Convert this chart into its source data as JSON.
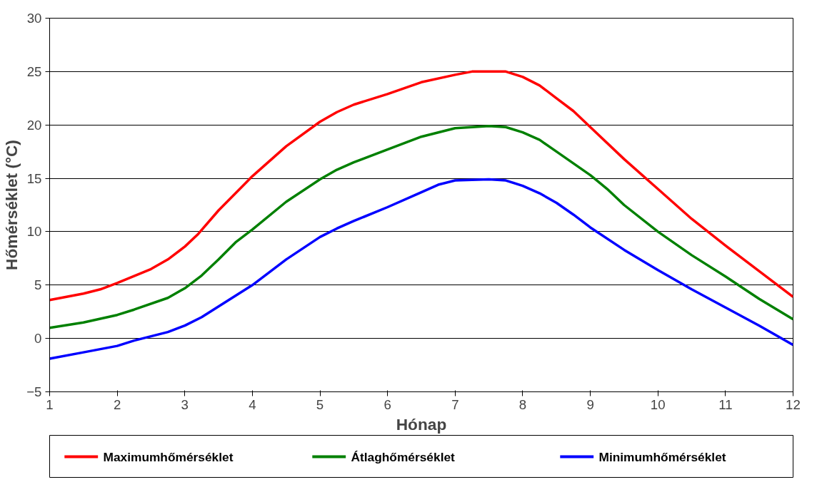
{
  "chart_data": {
    "type": "line",
    "xlabel": "Hónap",
    "ylabel": "Hőmérséklet (°C)",
    "xlim": [
      1,
      12
    ],
    "xticks": [
      1,
      2,
      3,
      4,
      5,
      6,
      7,
      8,
      9,
      10,
      11,
      12
    ],
    "ylim": [
      -5,
      30
    ],
    "yticks": [
      -5,
      0,
      5,
      10,
      15,
      20,
      25,
      30
    ],
    "grid": "y",
    "legend": "bottom",
    "marker": "none",
    "line_style": "solid",
    "series": [
      {
        "name": "Maximumhőmérséklet",
        "color": "#ff0000",
        "x": [
          1,
          1.5,
          1.75,
          2,
          2.5,
          2.75,
          3,
          3.2,
          3.5,
          4,
          4.5,
          5,
          5.25,
          5.5,
          6,
          6.5,
          7,
          7.25,
          7.5,
          7.75,
          8,
          8.25,
          8.5,
          8.75,
          9,
          9.5,
          10,
          10.5,
          11,
          11.5,
          12
        ],
        "values": [
          3.6,
          4.2,
          4.6,
          5.2,
          6.5,
          7.4,
          8.6,
          9.8,
          12,
          15.2,
          18,
          20.3,
          21.2,
          21.9,
          22.9,
          24,
          24.7,
          25,
          25,
          25,
          24.5,
          23.7,
          22.5,
          21.3,
          19.8,
          16.8,
          14,
          11.2,
          8.7,
          6.3,
          3.9
        ]
      },
      {
        "name": "Átlaghőmérséklet",
        "color": "#008000",
        "x": [
          1,
          1.5,
          2,
          2.25,
          2.75,
          3,
          3.25,
          3.5,
          3.75,
          4,
          4.5,
          5,
          5.25,
          5.5,
          6,
          6.5,
          6.75,
          7,
          7.5,
          7.75,
          8,
          8.25,
          8.5,
          9,
          9.25,
          9.5,
          10,
          10.5,
          11,
          11.5,
          12
        ],
        "values": [
          1.0,
          1.5,
          2.2,
          2.7,
          3.8,
          4.7,
          5.9,
          7.4,
          9,
          10.2,
          12.8,
          14.9,
          15.8,
          16.5,
          17.7,
          18.9,
          19.3,
          19.7,
          19.9,
          19.8,
          19.3,
          18.6,
          17.5,
          15.3,
          14,
          12.5,
          10,
          7.8,
          5.8,
          3.7,
          1.8
        ]
      },
      {
        "name": "Minimumhőmérséklet",
        "color": "#0000ff",
        "x": [
          1,
          1.5,
          2,
          2.25,
          2.5,
          2.75,
          3,
          3.25,
          3.5,
          4,
          4.5,
          5,
          5.25,
          5.5,
          6,
          6.5,
          6.75,
          7,
          7.5,
          7.75,
          8,
          8.25,
          8.5,
          8.75,
          9,
          9.5,
          10,
          10.5,
          11,
          11.5,
          12
        ],
        "values": [
          -1.9,
          -1.3,
          -0.7,
          -0.2,
          0.2,
          0.6,
          1.2,
          2,
          3,
          5,
          7.4,
          9.5,
          10.3,
          11,
          12.3,
          13.7,
          14.4,
          14.8,
          14.9,
          14.8,
          14.3,
          13.6,
          12.7,
          11.6,
          10.4,
          8.3,
          6.4,
          4.6,
          2.9,
          1.2,
          -0.6
        ]
      }
    ]
  }
}
